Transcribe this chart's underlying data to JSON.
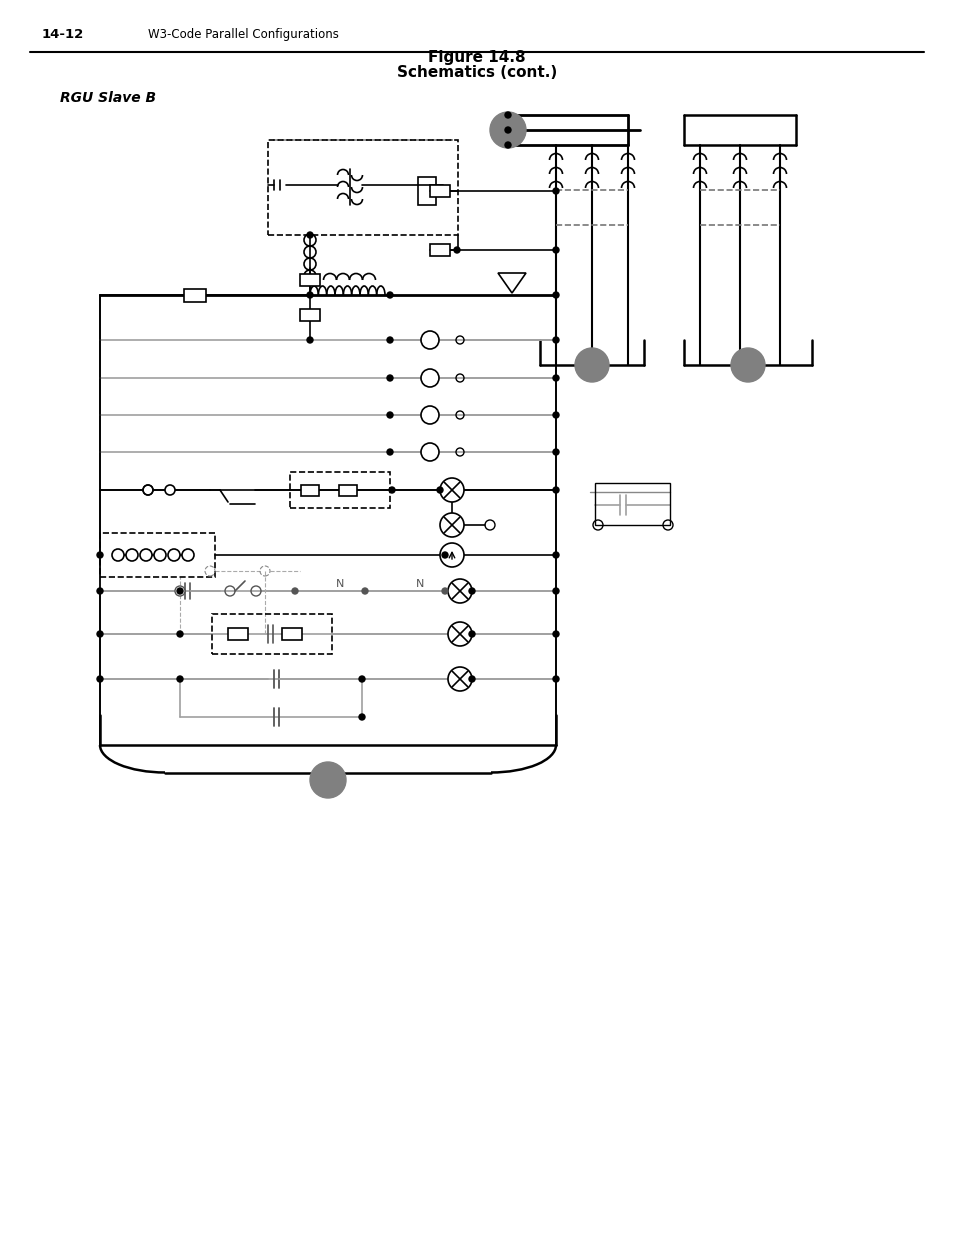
{
  "title_line1": "Figure 14.8",
  "title_line2": "Schematics (cont.)",
  "subtitle": "RGU Slave B",
  "page_label": "14-12",
  "page_section": "W3-Code Parallel Configurations",
  "bg_color": "#ffffff",
  "lc": "#000000",
  "gc": "#808080",
  "lgc": "#a0a0a0"
}
